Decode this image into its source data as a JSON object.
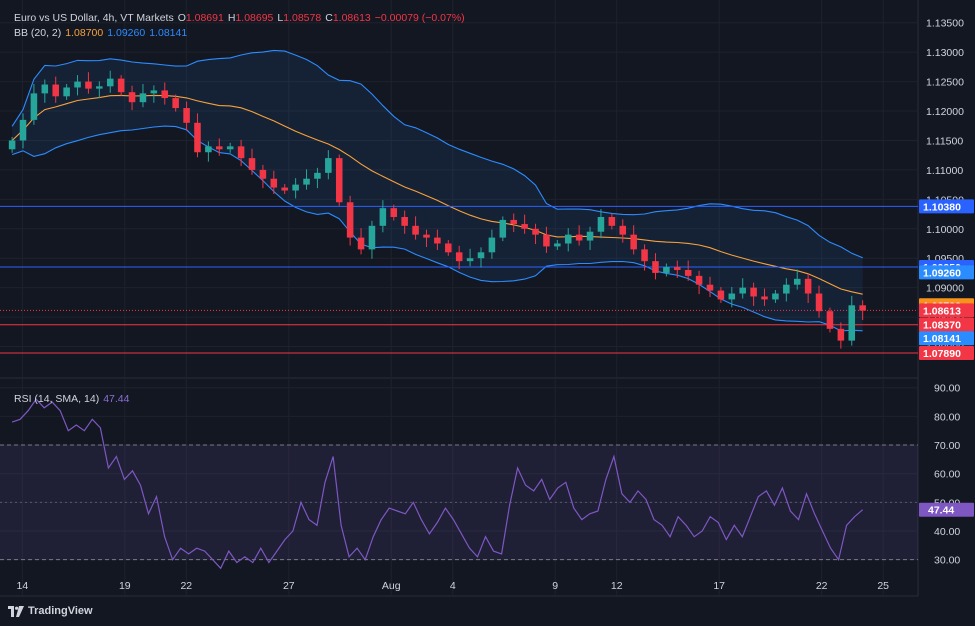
{
  "header": {
    "symbol_title": "Euro vs US Dollar, 4h, VT Markets",
    "ohlc": [
      {
        "key": "O",
        "value": "1.08691"
      },
      {
        "key": "H",
        "value": "1.08695"
      },
      {
        "key": "L",
        "value": "1.08578"
      },
      {
        "key": "C",
        "value": "1.08613"
      }
    ],
    "change": "−0.00079 (−0.07%)"
  },
  "bb_legend": {
    "label": "BB (20, 2)",
    "basis": "1.08700",
    "upper": "1.09260",
    "lower": "1.08141"
  },
  "rsi_legend": {
    "label": "RSI (14, SMA, 14)",
    "value": "47.44"
  },
  "brand": {
    "name": "TradingView"
  },
  "colors": {
    "up": "#26a69a",
    "down": "#f23645",
    "basis": "#f7a23b",
    "band": "#2b8cff",
    "rsi": "#7e57c2",
    "support_resistance": "#2962ff",
    "support_red": "#f23645"
  },
  "chart_data": [
    {
      "type": "candlestick",
      "title": "Euro vs US Dollar, 4h, VT Markets",
      "ylim": [
        1.0755,
        1.1375
      ],
      "y_ticks": [
        "1.13500",
        "1.13000",
        "1.12500",
        "1.12000",
        "1.11500",
        "1.11000",
        "1.10500",
        "1.10000",
        "1.09500",
        "1.09000",
        "1.08500",
        "1.08000"
      ],
      "x_ticks": [
        {
          "label": "14",
          "day": 14
        },
        {
          "label": "19",
          "day": 19
        },
        {
          "label": "22",
          "day": 22
        },
        {
          "label": "27",
          "day": 27
        },
        {
          "label": "Aug",
          "day": 32
        },
        {
          "label": "4",
          "day": 35
        },
        {
          "label": "9",
          "day": 40
        },
        {
          "label": "12",
          "day": 43
        },
        {
          "label": "17",
          "day": 48
        },
        {
          "label": "22",
          "day": 53
        },
        {
          "label": "25",
          "day": 56
        }
      ],
      "x_range_days": [
        13.3,
        57.7
      ],
      "last_day": 55.0,
      "closes": [
        1.115,
        1.1185,
        1.123,
        1.1245,
        1.1225,
        1.124,
        1.125,
        1.1238,
        1.1242,
        1.1255,
        1.1232,
        1.1215,
        1.123,
        1.1235,
        1.1222,
        1.1205,
        1.118,
        1.113,
        1.114,
        1.1135,
        1.114,
        1.112,
        1.11,
        1.1085,
        1.107,
        1.1065,
        1.1075,
        1.1085,
        1.1095,
        1.112,
        1.1045,
        1.0985,
        1.0965,
        1.1005,
        1.1035,
        1.102,
        1.1005,
        1.099,
        1.0985,
        1.0975,
        1.096,
        1.0945,
        1.095,
        1.096,
        1.0985,
        1.1015,
        1.1008,
        1.1,
        1.099,
        1.097,
        1.0975,
        1.099,
        1.098,
        1.0995,
        1.102,
        1.1005,
        1.099,
        1.0965,
        1.0945,
        1.0925,
        1.0935,
        1.093,
        1.092,
        1.0905,
        1.0895,
        1.088,
        1.089,
        1.09,
        1.0885,
        1.088,
        1.089,
        1.0905,
        1.0915,
        1.089,
        1.086,
        1.083,
        1.081,
        1.087,
        1.0861
      ],
      "series": [
        {
          "name": "",
          "role": "bb-basis"
        },
        {
          "name": "",
          "role": "bb-upper"
        },
        {
          "name": "",
          "role": "bb-lower"
        }
      ],
      "horizontal_levels": [
        {
          "price": 1.1038,
          "label": "1.10380",
          "color": "#2962ff"
        },
        {
          "price": 1.0935,
          "label": "1.09350",
          "color": "#2962ff"
        },
        {
          "price": 1.0837,
          "label": "1.08370",
          "color": "#f23645"
        },
        {
          "price": 1.0789,
          "label": "1.07890",
          "color": "#f23645"
        }
      ],
      "price_labels": [
        {
          "price": 1.1038,
          "text": "1.10380",
          "bg": "#2962ff"
        },
        {
          "price": 1.0935,
          "text": "1.09350",
          "bg": "#2962ff"
        },
        {
          "price": 1.0926,
          "text": "1.09260",
          "bg": "#2b8cff"
        },
        {
          "price": 1.087,
          "text": "1.08700",
          "bg": "#f7931a"
        },
        {
          "price": 1.08613,
          "text": "1.08613",
          "bg": "#f23645"
        },
        {
          "price": 1.0837,
          "text": "1.08370",
          "bg": "#f23645"
        },
        {
          "price": 1.08141,
          "text": "1.08141",
          "bg": "#2b8cff"
        },
        {
          "price": 1.0789,
          "text": "1.07890",
          "bg": "#f23645"
        }
      ],
      "current_price": 1.08613
    },
    {
      "type": "line",
      "title": "RSI (14, SMA, 14)",
      "ylim": [
        25,
        92
      ],
      "y_ticks": [
        "90.00",
        "80.00",
        "70.00",
        "60.00",
        "50.00",
        "40.00",
        "30.00"
      ],
      "overbought": 70,
      "oversold": 30,
      "series": [
        {
          "name": "",
          "values": [
            78,
            79,
            82,
            86,
            83,
            85,
            82,
            75,
            77,
            75,
            79,
            76,
            62,
            66,
            58,
            61,
            56,
            46,
            52,
            38,
            30,
            34,
            32,
            34,
            33,
            30,
            27,
            33,
            29,
            31,
            29,
            34,
            29,
            33,
            37,
            40,
            50,
            44,
            42,
            57,
            66,
            42,
            31,
            34,
            30,
            38,
            44,
            48,
            47,
            46,
            50,
            44,
            39,
            43,
            48,
            44,
            39,
            34,
            31,
            38,
            33,
            32,
            49,
            62,
            56,
            54,
            58,
            51,
            55,
            57,
            48,
            44,
            46,
            47,
            58,
            66,
            53,
            50,
            54,
            51,
            44,
            42,
            38,
            45,
            42,
            38,
            40,
            45,
            43,
            37,
            42,
            38,
            45,
            52,
            54,
            49,
            55,
            47,
            44,
            53,
            46,
            40,
            34,
            30,
            42,
            45,
            47.44
          ]
        }
      ],
      "current_value": "47.44"
    }
  ]
}
